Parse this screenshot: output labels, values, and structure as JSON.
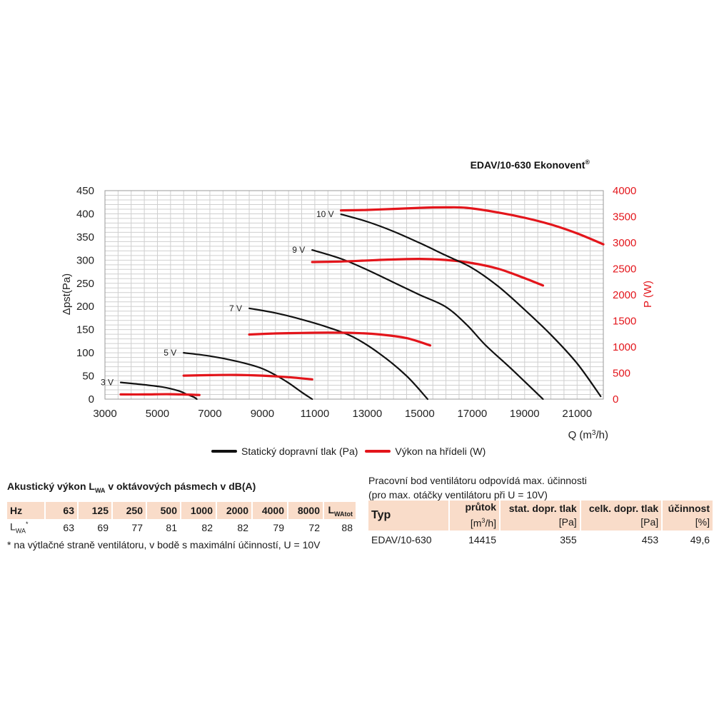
{
  "chart_data": {
    "type": "line",
    "title": "EDAV/10-630 Ekonovent",
    "title_mark": "®",
    "xlabel_main": "Q (m",
    "xlabel_sup": "3",
    "xlabel_tail": "/h)",
    "ylabel_left": "Δpst(Pa)",
    "ylabel_right": "P (W)",
    "xlim": [
      3000,
      22000
    ],
    "ylim_left": [
      0,
      450
    ],
    "ylim_right": [
      0,
      4000
    ],
    "x_ticks": [
      "3000",
      "5000",
      "7000",
      "9000",
      "11000",
      "13000",
      "15000",
      "17000",
      "19000",
      "21000"
    ],
    "y_ticks_left": [
      "0",
      "50",
      "100",
      "150",
      "200",
      "250",
      "300",
      "350",
      "400",
      "450"
    ],
    "y_ticks_right": [
      "0",
      "500",
      "1000",
      "1500",
      "2000",
      "2500",
      "3000",
      "3500",
      "4000"
    ],
    "grid": true,
    "legend_position": "bottom",
    "series_colors": {
      "pressure": "#111111",
      "power": "#e3151b"
    },
    "legend": {
      "pressure": "Statický dopravní tlak (Pa)",
      "power": "Výkon na hřídeli (W)"
    },
    "series": [
      {
        "label": "3 V",
        "axis": "left",
        "kind": "pressure",
        "x": [
          3600,
          4500,
          5200,
          5800,
          6100,
          6400,
          6500
        ],
        "y": [
          36,
          31,
          26,
          18,
          11,
          4,
          0
        ]
      },
      {
        "label": "3 V",
        "axis": "right",
        "kind": "power",
        "x": [
          3600,
          4500,
          5500,
          6600
        ],
        "y": [
          90,
          90,
          95,
          80
        ]
      },
      {
        "label": "5 V",
        "axis": "left",
        "kind": "pressure",
        "x": [
          6000,
          7000,
          8000,
          8900,
          9500,
          10000,
          10500,
          10900
        ],
        "y": [
          100,
          93,
          82,
          68,
          52,
          35,
          15,
          0
        ]
      },
      {
        "label": "5 V",
        "axis": "right",
        "kind": "power",
        "x": [
          6000,
          7000,
          8000,
          9000,
          10000,
          10900
        ],
        "y": [
          450,
          460,
          465,
          450,
          420,
          380
        ]
      },
      {
        "label": "7 V",
        "axis": "left",
        "kind": "pressure",
        "x": [
          8500,
          9500,
          10500,
          11500,
          12500,
          13500,
          14500,
          15300
        ],
        "y": [
          196,
          186,
          172,
          155,
          133,
          97,
          50,
          0
        ]
      },
      {
        "label": "7 V",
        "axis": "right",
        "kind": "power",
        "x": [
          8500,
          9500,
          10500,
          11500,
          12500,
          13500,
          14500,
          15400
        ],
        "y": [
          1240,
          1260,
          1270,
          1275,
          1270,
          1240,
          1170,
          1030
        ]
      },
      {
        "label": "9 V",
        "axis": "left",
        "kind": "pressure",
        "x": [
          10900,
          12000,
          13000,
          14000,
          15000,
          16000,
          16800,
          17500,
          18500,
          19700
        ],
        "y": [
          322,
          303,
          279,
          252,
          225,
          199,
          160,
          117,
          65,
          0
        ]
      },
      {
        "label": "9 V",
        "axis": "right",
        "kind": "power",
        "x": [
          10900,
          12000,
          13000,
          14000,
          15000,
          16000,
          17000,
          18000,
          19000,
          19700
        ],
        "y": [
          2630,
          2640,
          2660,
          2680,
          2690,
          2670,
          2610,
          2500,
          2320,
          2180
        ]
      },
      {
        "label": "10 V",
        "axis": "left",
        "kind": "pressure",
        "x": [
          12000,
          13000,
          14000,
          15000,
          16000,
          17000,
          18000,
          19000,
          20000,
          21000,
          21900
        ],
        "y": [
          399,
          383,
          362,
          337,
          310,
          283,
          243,
          193,
          139,
          77,
          6
        ]
      },
      {
        "label": "10 V",
        "axis": "right",
        "kind": "power",
        "x": [
          12000,
          13000,
          14000,
          15000,
          16000,
          16800,
          18000,
          19000,
          20000,
          21000,
          22000
        ],
        "y": [
          3620,
          3630,
          3650,
          3670,
          3680,
          3670,
          3580,
          3480,
          3350,
          3180,
          2970
        ]
      }
    ]
  },
  "acoustic": {
    "title_main": "Akustický výkon L",
    "title_sub": "WA",
    "title_tail": " v oktávových pásmech v dB(A)",
    "header_first": "Hz",
    "freqs": [
      "63",
      "125",
      "250",
      "500",
      "1000",
      "2000",
      "4000",
      "8000"
    ],
    "header_tot_main": "L",
    "header_tot_sub": "WAtot",
    "row_label_main": "L",
    "row_label_sub": "WA",
    "row_label_mark": "*",
    "values": [
      "63",
      "69",
      "77",
      "81",
      "82",
      "82",
      "79",
      "72"
    ],
    "total": "88",
    "note": "* na výtlačné straně ventilátoru, v bodě s maximální účinností, U = 10V"
  },
  "operating": {
    "title_line1": "Pracovní bod ventilátoru odpovídá max. účinnosti",
    "title_line2": "(pro max. otáčky ventilátoru při U = 10V)",
    "headers": {
      "type": "Typ",
      "flow": "průtok",
      "flow_unit_pre": "[m",
      "flow_unit_sup": "3",
      "flow_unit_post": "/h]",
      "stat": "stat. dopr. tlak",
      "stat_unit": "[Pa]",
      "total": "celk. dopr. tlak",
      "total_unit": "[Pa]",
      "eff": "účinnost",
      "eff_unit": "[%]"
    },
    "row": {
      "type": "EDAV/10-630",
      "flow": "14415",
      "stat": "355",
      "total": "453",
      "eff": "49,6"
    }
  }
}
